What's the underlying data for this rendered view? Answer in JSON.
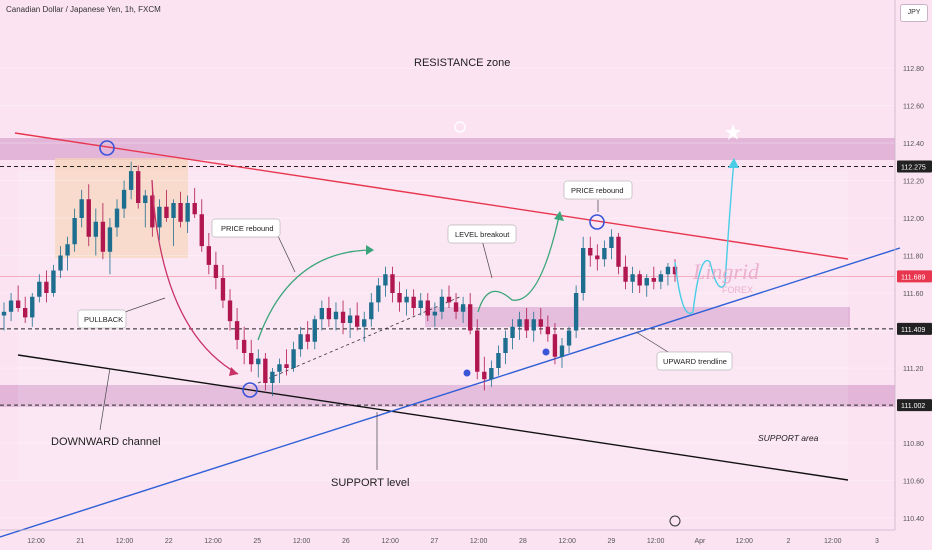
{
  "header": {
    "title": "Canadian Dollar / Japanese Yen, 1h, FXCM",
    "currency": "JPY"
  },
  "colors": {
    "background": "#fbe3f2",
    "zone_band": "#d9a6d0",
    "candle_up": "#1e6f8f",
    "candle_down": "#b0174f",
    "channel_top": "#e8364f",
    "channel_bottom": "#111111",
    "trendline": "#2f5fd6",
    "highlight": "#f5d3b8",
    "forecast": "#49cde6",
    "arrow_green": "#3aa57a",
    "arrow_red": "#c83367",
    "marker": "#3a55d8"
  },
  "chart_data": {
    "type": "candlestick",
    "ylim": [
      110.35,
      112.95
    ],
    "y_ticks": [
      "112.80",
      "112.60",
      "112.40",
      "112.20",
      "112.00",
      "111.80",
      "111.60",
      "111.40",
      "111.20",
      "111.00",
      "110.80",
      "110.60",
      "110.40"
    ],
    "x_ticks": [
      "12:00",
      "21",
      "12:00",
      "22",
      "12:00",
      "25",
      "12:00",
      "26",
      "12:00",
      "27",
      "12:00",
      "28",
      "12:00",
      "29",
      "12:00",
      "Apr",
      "12:00",
      "2",
      "12:00",
      "3"
    ],
    "price_labels": [
      {
        "value": "112.275",
        "color": "#222222"
      },
      {
        "value": "111.689",
        "color": "#e8364f"
      },
      {
        "value": "111.409",
        "color": "#222222"
      },
      {
        "value": "111.002",
        "color": "#222222"
      }
    ],
    "levels": {
      "resistance": 112.275,
      "mid": 111.409,
      "support": 111.002,
      "last": 111.689
    },
    "candles": [
      [
        111.48,
        111.55,
        111.4,
        111.5
      ],
      [
        111.5,
        111.6,
        111.45,
        111.56
      ],
      [
        111.56,
        111.64,
        111.5,
        111.52
      ],
      [
        111.52,
        111.58,
        111.44,
        111.47
      ],
      [
        111.47,
        111.6,
        111.42,
        111.58
      ],
      [
        111.58,
        111.7,
        111.55,
        111.66
      ],
      [
        111.66,
        111.72,
        111.55,
        111.6
      ],
      [
        111.6,
        111.75,
        111.58,
        111.72
      ],
      [
        111.72,
        111.85,
        111.68,
        111.8
      ],
      [
        111.8,
        111.9,
        111.72,
        111.86
      ],
      [
        111.86,
        112.05,
        111.82,
        112.0
      ],
      [
        112.0,
        112.15,
        111.95,
        112.1
      ],
      [
        112.1,
        112.18,
        111.85,
        111.9
      ],
      [
        111.9,
        112.05,
        111.8,
        111.98
      ],
      [
        111.98,
        112.08,
        111.78,
        111.82
      ],
      [
        111.82,
        112.0,
        111.7,
        111.95
      ],
      [
        111.95,
        112.1,
        111.9,
        112.05
      ],
      [
        112.05,
        112.2,
        112.0,
        112.15
      ],
      [
        112.15,
        112.3,
        112.1,
        112.25
      ],
      [
        112.25,
        112.28,
        112.05,
        112.08
      ],
      [
        112.08,
        112.15,
        111.95,
        112.12
      ],
      [
        112.12,
        112.18,
        111.9,
        111.95
      ],
      [
        111.95,
        112.1,
        111.88,
        112.06
      ],
      [
        112.06,
        112.15,
        111.98,
        112.0
      ],
      [
        112.0,
        112.1,
        111.85,
        112.08
      ],
      [
        112.08,
        112.14,
        111.95,
        111.98
      ],
      [
        111.98,
        112.12,
        111.92,
        112.08
      ],
      [
        112.08,
        112.16,
        112.0,
        112.02
      ],
      [
        112.02,
        112.1,
        111.82,
        111.85
      ],
      [
        111.85,
        111.92,
        111.7,
        111.75
      ],
      [
        111.75,
        111.82,
        111.62,
        111.68
      ],
      [
        111.68,
        111.75,
        111.52,
        111.56
      ],
      [
        111.56,
        111.62,
        111.4,
        111.45
      ],
      [
        111.45,
        111.52,
        111.3,
        111.35
      ],
      [
        111.35,
        111.42,
        111.22,
        111.28
      ],
      [
        111.28,
        111.35,
        111.18,
        111.22
      ],
      [
        111.22,
        111.3,
        111.15,
        111.25
      ],
      [
        111.25,
        111.28,
        111.08,
        111.12
      ],
      [
        111.12,
        111.2,
        111.05,
        111.18
      ],
      [
        111.18,
        111.25,
        111.12,
        111.22
      ],
      [
        111.22,
        111.3,
        111.16,
        111.2
      ],
      [
        111.2,
        111.34,
        111.18,
        111.3
      ],
      [
        111.3,
        111.42,
        111.26,
        111.38
      ],
      [
        111.38,
        111.45,
        111.3,
        111.34
      ],
      [
        111.34,
        111.48,
        111.3,
        111.46
      ],
      [
        111.46,
        111.56,
        111.4,
        111.52
      ],
      [
        111.52,
        111.58,
        111.42,
        111.46
      ],
      [
        111.46,
        111.55,
        111.4,
        111.5
      ],
      [
        111.5,
        111.56,
        111.38,
        111.44
      ],
      [
        111.44,
        111.52,
        111.36,
        111.48
      ],
      [
        111.48,
        111.55,
        111.4,
        111.42
      ],
      [
        111.42,
        111.5,
        111.34,
        111.46
      ],
      [
        111.46,
        111.6,
        111.42,
        111.55
      ],
      [
        111.55,
        111.68,
        111.5,
        111.64
      ],
      [
        111.64,
        111.74,
        111.58,
        111.7
      ],
      [
        111.7,
        111.74,
        111.55,
        111.6
      ],
      [
        111.6,
        111.66,
        111.5,
        111.55
      ],
      [
        111.55,
        111.62,
        111.48,
        111.58
      ],
      [
        111.58,
        111.62,
        111.48,
        111.52
      ],
      [
        111.52,
        111.6,
        111.48,
        111.56
      ],
      [
        111.56,
        111.6,
        111.45,
        111.48
      ],
      [
        111.48,
        111.55,
        111.42,
        111.5
      ],
      [
        111.5,
        111.62,
        111.46,
        111.58
      ],
      [
        111.58,
        111.64,
        111.52,
        111.55
      ],
      [
        111.55,
        111.6,
        111.46,
        111.5
      ],
      [
        111.5,
        111.58,
        111.44,
        111.54
      ],
      [
        111.54,
        111.6,
        111.38,
        111.4
      ],
      [
        111.4,
        111.46,
        111.14,
        111.18
      ],
      [
        111.18,
        111.26,
        111.08,
        111.14
      ],
      [
        111.14,
        111.24,
        111.1,
        111.2
      ],
      [
        111.2,
        111.32,
        111.16,
        111.28
      ],
      [
        111.28,
        111.4,
        111.22,
        111.36
      ],
      [
        111.36,
        111.46,
        111.3,
        111.42
      ],
      [
        111.42,
        111.5,
        111.35,
        111.46
      ],
      [
        111.46,
        111.52,
        111.36,
        111.4
      ],
      [
        111.4,
        111.5,
        111.34,
        111.46
      ],
      [
        111.46,
        111.52,
        111.38,
        111.42
      ],
      [
        111.42,
        111.48,
        111.34,
        111.38
      ],
      [
        111.38,
        111.44,
        111.22,
        111.26
      ],
      [
        111.26,
        111.36,
        111.2,
        111.32
      ],
      [
        111.32,
        111.42,
        111.28,
        111.4
      ],
      [
        111.4,
        111.64,
        111.36,
        111.6
      ],
      [
        111.6,
        111.9,
        111.56,
        111.84
      ],
      [
        111.84,
        111.9,
        111.74,
        111.8
      ],
      [
        111.8,
        111.86,
        111.72,
        111.78
      ],
      [
        111.78,
        111.88,
        111.74,
        111.84
      ],
      [
        111.84,
        111.94,
        111.78,
        111.9
      ],
      [
        111.9,
        111.92,
        111.7,
        111.74
      ],
      [
        111.74,
        111.8,
        111.62,
        111.66
      ],
      [
        111.66,
        111.74,
        111.6,
        111.7
      ],
      [
        111.7,
        111.72,
        111.6,
        111.64
      ],
      [
        111.64,
        111.7,
        111.58,
        111.68
      ],
      [
        111.68,
        111.74,
        111.62,
        111.66
      ],
      [
        111.66,
        111.72,
        111.62,
        111.7
      ],
      [
        111.7,
        111.76,
        111.64,
        111.74
      ],
      [
        111.74,
        111.78,
        111.66,
        111.7
      ]
    ]
  },
  "annotations": {
    "resistance_zone": "RESISTANCE zone",
    "price_rebound_left": "PRICE rebound",
    "price_rebound_right": "PRICE rebound",
    "level_breakout": "LEVEL breakout",
    "pullback": "PULLBACK",
    "upward_trendline": "UPWARD trendline",
    "downward_channel": "DOWNWARD channel",
    "support_level": "SUPPORT level",
    "support_area": "SUPPORT area",
    "watermark": "Lingrid",
    "watermark_sub": "FOREX"
  }
}
